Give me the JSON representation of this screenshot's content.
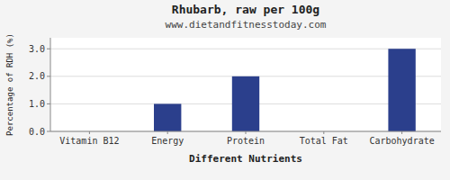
{
  "chart_data": {
    "type": "bar",
    "title": "Rhubarb, raw per 100g",
    "subtitle": "www.dietandfitnesstoday.com",
    "xlabel": "Different Nutrients",
    "ylabel": "Percentage of RDH (%)",
    "categories": [
      "Vitamin B12",
      "Energy",
      "Protein",
      "Total Fat",
      "Carbohydrate"
    ],
    "values": [
      0.0,
      1.0,
      2.0,
      0.0,
      3.0
    ],
    "color": "#2b3f8c",
    "ylim": [
      0,
      3.4
    ],
    "yticks": [
      {
        "value": 0.0,
        "label": "0.0"
      },
      {
        "value": 1.0,
        "label": "1.0"
      },
      {
        "value": 2.0,
        "label": "2.0"
      },
      {
        "value": 3.0,
        "label": "3.0"
      }
    ],
    "grid": true
  }
}
